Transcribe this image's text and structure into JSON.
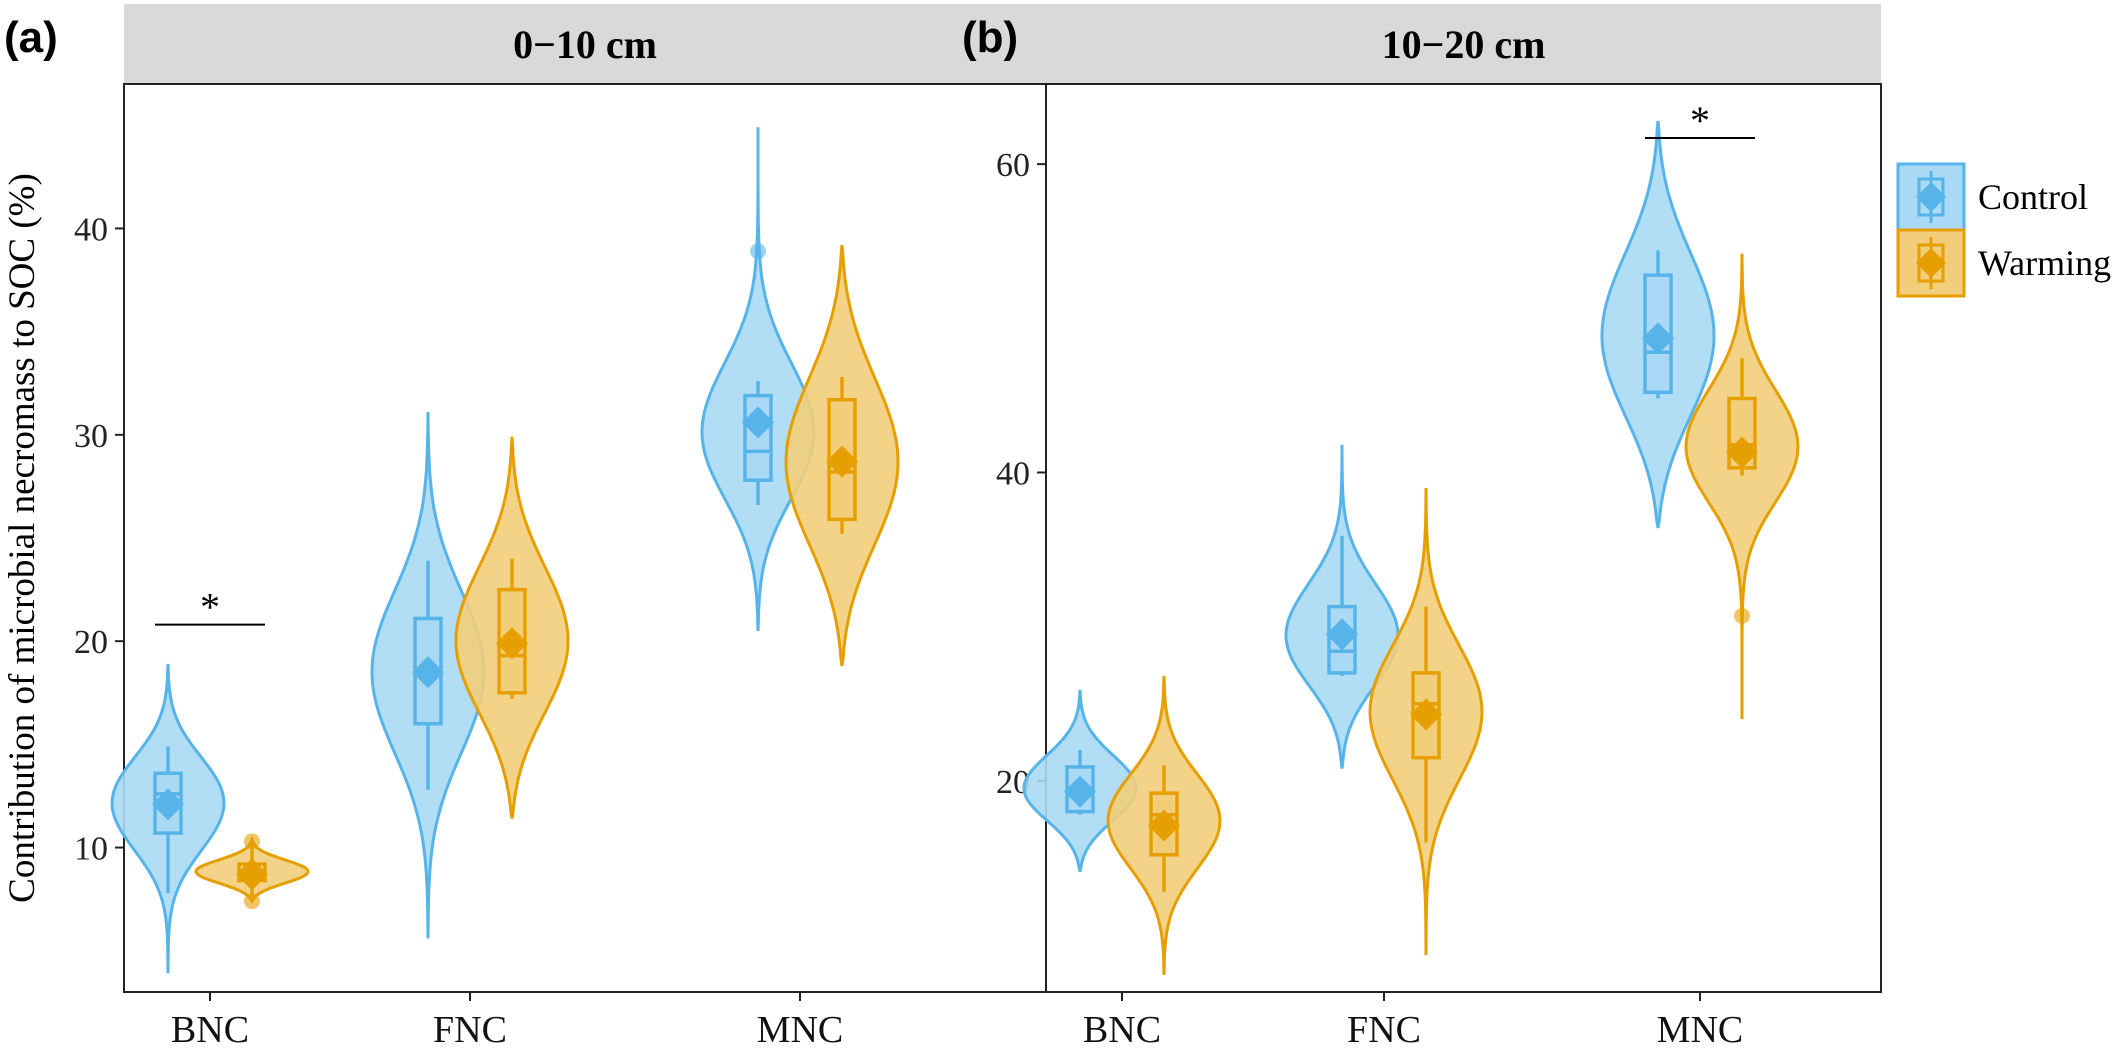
{
  "figure": {
    "ylabel": "Contribution of microbial necromass to SOC (%)",
    "legend": {
      "position": "right",
      "entries": [
        {
          "label": "Control",
          "color": "#56B4E9",
          "fill": "#A9D9F4"
        },
        {
          "label": "Warming",
          "color": "#E69F00",
          "fill": "#F2CE7A"
        }
      ]
    }
  },
  "chart_data": [
    {
      "type": "violin",
      "panel_label": "(a)",
      "title": "0−10 cm",
      "categories": [
        "BNC",
        "FNC",
        "MNC"
      ],
      "ylim": [
        3,
        47
      ],
      "yticks": [
        10,
        20,
        30,
        40
      ],
      "grid": false,
      "series": [
        {
          "name": "Control",
          "groups": [
            {
              "category": "BNC",
              "min": 7.8,
              "q1": 10.7,
              "median": 12.6,
              "q3": 13.6,
              "max": 14.9,
              "mean": 12.1,
              "violin_range": [
                3.9,
                18.9
              ],
              "outliers": []
            },
            {
              "category": "FNC",
              "min": 12.8,
              "q1": 16.0,
              "median": 18.6,
              "q3": 21.1,
              "max": 23.9,
              "mean": 18.5,
              "violin_range": [
                5.6,
                31.1
              ],
              "outliers": []
            },
            {
              "category": "MNC",
              "min": 26.6,
              "q1": 27.8,
              "median": 29.2,
              "q3": 31.9,
              "max": 32.6,
              "mean": 30.6,
              "violin_range": [
                20.5,
                44.9
              ],
              "outliers": [
                38.9
              ]
            }
          ]
        },
        {
          "name": "Warming",
          "groups": [
            {
              "category": "BNC",
              "min": 7.6,
              "q1": 8.4,
              "median": 8.8,
              "q3": 9.2,
              "max": 10.2,
              "mean": 8.7,
              "violin_range": [
                7.4,
                10.4
              ],
              "outliers": [
                7.4,
                10.3
              ]
            },
            {
              "category": "FNC",
              "min": 17.2,
              "q1": 17.5,
              "median": 19.3,
              "q3": 22.5,
              "max": 24.0,
              "mean": 19.9,
              "violin_range": [
                11.4,
                29.9
              ],
              "outliers": []
            },
            {
              "category": "MNC",
              "min": 25.2,
              "q1": 25.9,
              "median": 28.2,
              "q3": 31.7,
              "max": 32.8,
              "mean": 28.7,
              "violin_range": [
                18.8,
                39.2
              ],
              "outliers": []
            }
          ]
        }
      ],
      "annotations": [
        {
          "text": "*",
          "category": "BNC",
          "y": 20.8
        }
      ]
    },
    {
      "type": "violin",
      "panel_label": "(b)",
      "title": "10−20 cm",
      "categories": [
        "BNC",
        "FNC",
        "MNC"
      ],
      "ylim": [
        6.3,
        65.2
      ],
      "yticks": [
        20,
        40,
        60
      ],
      "grid": false,
      "series": [
        {
          "name": "Control",
          "groups": [
            {
              "category": "BNC",
              "min": 17.8,
              "q1": 18.0,
              "median": 19.1,
              "q3": 20.9,
              "max": 22.0,
              "mean": 19.3,
              "violin_range": [
                14.1,
                25.9
              ],
              "outliers": []
            },
            {
              "category": "FNC",
              "min": 26.8,
              "q1": 27.0,
              "median": 28.4,
              "q3": 31.3,
              "max": 35.9,
              "mean": 29.5,
              "violin_range": [
                20.8,
                41.8
              ],
              "outliers": []
            },
            {
              "category": "MNC",
              "min": 44.8,
              "q1": 45.2,
              "median": 47.8,
              "q3": 52.8,
              "max": 54.4,
              "mean": 48.7,
              "violin_range": [
                36.4,
                62.8
              ],
              "outliers": []
            }
          ]
        },
        {
          "name": "Warming",
          "groups": [
            {
              "category": "BNC",
              "min": 12.8,
              "q1": 15.2,
              "median": 17.8,
              "q3": 19.2,
              "max": 21.0,
              "mean": 17.1,
              "violin_range": [
                7.4,
                26.8
              ],
              "outliers": []
            },
            {
              "category": "FNC",
              "min": 16.0,
              "q1": 21.5,
              "median": 25.0,
              "q3": 27.0,
              "max": 31.3,
              "mean": 24.3,
              "violin_range": [
                8.7,
                39.0
              ],
              "outliers": []
            },
            {
              "category": "MNC",
              "min": 39.8,
              "q1": 40.3,
              "median": 41.8,
              "q3": 44.8,
              "max": 47.4,
              "mean": 41.3,
              "violin_range": [
                24.0,
                54.2
              ],
              "outliers": [
                30.7
              ]
            }
          ]
        }
      ],
      "annotations": [
        {
          "text": "*",
          "category": "MNC",
          "y": 61.7
        }
      ]
    }
  ]
}
